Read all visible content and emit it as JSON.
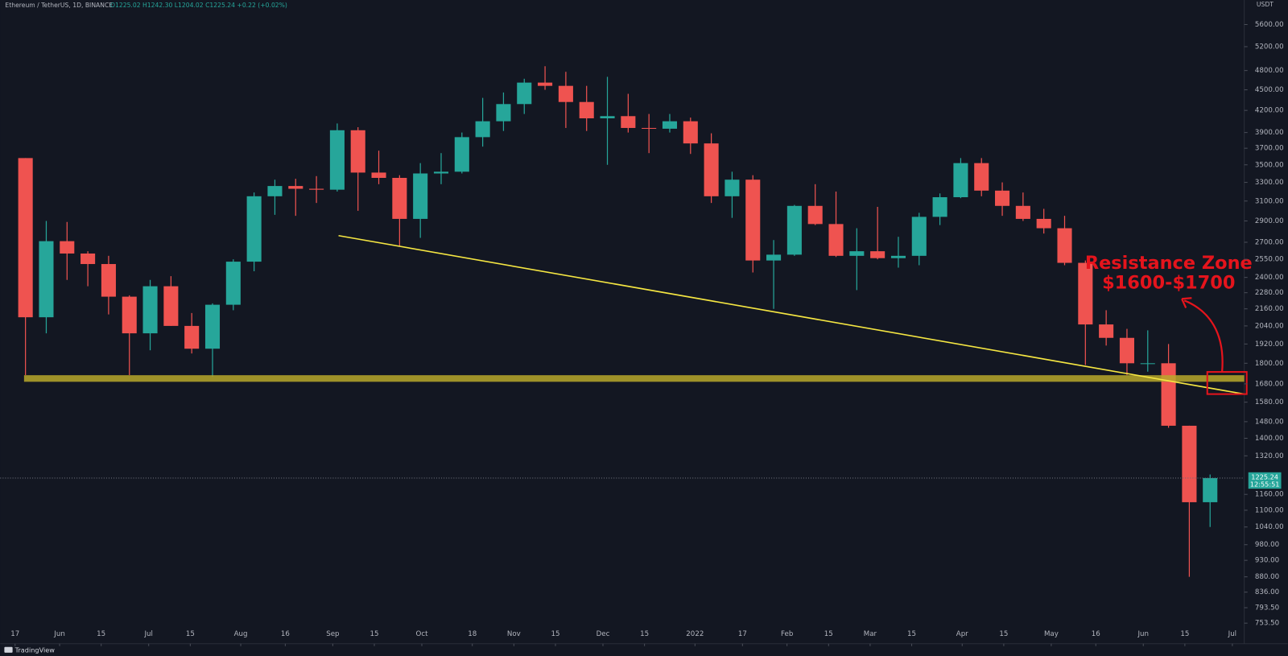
{
  "chart_data": {
    "type": "candlestick",
    "title": "Ethereum / TetherUS, 1D, BINANCE",
    "ohlc_text": "O1225.02 H1242.30 L1204.02 C1225.24 +0.22 (+0.02%)",
    "currency": "USDT",
    "brand": "TradingView",
    "annotation": [
      "Resistance Zone",
      "$1600-$1700"
    ],
    "last_price": {
      "value": 1225.24,
      "label": "1225.24"
    },
    "countdown": "12:55:51",
    "log_scale": true,
    "grid": false,
    "up_color": "#26a69a",
    "down_color": "#ef5350",
    "xlim": [
      "2021-05-12",
      "2022-07-05"
    ],
    "ylim": [
      727,
      6080
    ],
    "x": [
      "2021-05-17",
      "2021-05-24",
      "2021-05-31",
      "2021-06-07",
      "2021-06-14",
      "2021-06-21",
      "2021-06-28",
      "2021-07-05",
      "2021-07-12",
      "2021-07-19",
      "2021-07-26",
      "2021-08-02",
      "2021-08-09",
      "2021-08-16",
      "2021-08-23",
      "2021-08-30",
      "2021-09-06",
      "2021-09-13",
      "2021-09-20",
      "2021-09-27",
      "2021-10-04",
      "2021-10-11",
      "2021-10-18",
      "2021-10-25",
      "2021-11-01",
      "2021-11-08",
      "2021-11-15",
      "2021-11-22",
      "2021-11-29",
      "2021-12-06",
      "2021-12-13",
      "2021-12-20",
      "2021-12-27",
      "2022-01-03",
      "2022-01-10",
      "2022-01-17",
      "2022-01-24",
      "2022-01-31",
      "2022-02-07",
      "2022-02-14",
      "2022-02-21",
      "2022-02-28",
      "2022-03-07",
      "2022-03-14",
      "2022-03-21",
      "2022-03-28",
      "2022-04-04",
      "2022-04-11",
      "2022-04-18",
      "2022-04-25",
      "2022-05-02",
      "2022-05-09",
      "2022-05-16",
      "2022-05-23",
      "2022-05-30",
      "2022-06-06",
      "2022-06-13",
      "2022-06-20"
    ],
    "open": [
      3580,
      2100,
      2710,
      2600,
      2510,
      2250,
      1990,
      2330,
      2040,
      1890,
      2190,
      2530,
      3150,
      3260,
      3230,
      3220,
      3930,
      3410,
      3350,
      2920,
      3400,
      3420,
      3840,
      4050,
      4290,
      4610,
      4560,
      4320,
      4090,
      4120,
      3960,
      3950,
      4050,
      3760,
      3150,
      3330,
      2540,
      2590,
      3050,
      2870,
      2580,
      2620,
      2560,
      2580,
      2940,
      3140,
      3520,
      3210,
      3050,
      2920,
      2830,
      2520,
      2050,
      1960,
      1800,
      1800,
      1460,
      1130
    ],
    "high": [
      3580,
      2900,
      2890,
      2620,
      2580,
      2260,
      2380,
      2410,
      2130,
      2200,
      2550,
      3190,
      3330,
      3340,
      3370,
      4020,
      3970,
      3670,
      3380,
      3520,
      3640,
      3900,
      4380,
      4460,
      4670,
      4870,
      4780,
      4560,
      4700,
      4440,
      4150,
      4150,
      4100,
      3890,
      3420,
      3380,
      2720,
      3060,
      3280,
      3200,
      2830,
      3040,
      2750,
      2980,
      3180,
      3580,
      3580,
      3300,
      3190,
      3020,
      2950,
      2540,
      2150,
      2020,
      2010,
      1920,
      1460,
      1240
    ],
    "low": [
      1730,
      1990,
      2380,
      2330,
      2120,
      1730,
      1880,
      2040,
      1860,
      1720,
      2150,
      2450,
      2960,
      2950,
      3080,
      3200,
      3000,
      3280,
      2660,
      2740,
      3280,
      3400,
      3720,
      3920,
      4150,
      4500,
      3960,
      3920,
      3500,
      3900,
      3640,
      3900,
      3630,
      3080,
      2930,
      2440,
      2160,
      2580,
      2860,
      2570,
      2300,
      2550,
      2480,
      2500,
      2860,
      3130,
      3150,
      2950,
      2900,
      2780,
      2500,
      1790,
      1910,
      1730,
      1750,
      1450,
      880,
      1040
    ],
    "close": [
      2100,
      2710,
      2600,
      2510,
      2250,
      1990,
      2330,
      2040,
      1890,
      2190,
      2530,
      3150,
      3260,
      3230,
      3220,
      3930,
      3410,
      3350,
      2920,
      3400,
      3420,
      3840,
      4050,
      4290,
      4610,
      4560,
      4320,
      4090,
      4120,
      3960,
      3950,
      4050,
      3760,
      3150,
      3330,
      2540,
      2590,
      3050,
      2870,
      2580,
      2620,
      2560,
      2580,
      2940,
      3140,
      3520,
      3210,
      3050,
      2920,
      2830,
      2520,
      2050,
      1960,
      1800,
      1800,
      1460,
      1130,
      1225.24
    ],
    "yticks": [
      {
        "value": 5600,
        "label": "5600.00"
      },
      {
        "value": 5200,
        "label": "5200.00"
      },
      {
        "value": 4800,
        "label": "4800.00"
      },
      {
        "value": 4500,
        "label": "4500.00"
      },
      {
        "value": 4200,
        "label": "4200.00"
      },
      {
        "value": 3900,
        "label": "3900.00"
      },
      {
        "value": 3700,
        "label": "3700.00"
      },
      {
        "value": 3500,
        "label": "3500.00"
      },
      {
        "value": 3300,
        "label": "3300.00"
      },
      {
        "value": 3100,
        "label": "3100.00"
      },
      {
        "value": 2900,
        "label": "2900.00"
      },
      {
        "value": 2700,
        "label": "2700.00"
      },
      {
        "value": 2550,
        "label": "2550.00"
      },
      {
        "value": 2400,
        "label": "2400.00"
      },
      {
        "value": 2280,
        "label": "2280.00"
      },
      {
        "value": 2160,
        "label": "2160.00"
      },
      {
        "value": 2040,
        "label": "2040.00"
      },
      {
        "value": 1920,
        "label": "1920.00"
      },
      {
        "value": 1800,
        "label": "1800.00"
      },
      {
        "value": 1680,
        "label": "1680.00"
      },
      {
        "value": 1580,
        "label": "1580.00"
      },
      {
        "value": 1480,
        "label": "1480.00"
      },
      {
        "value": 1400,
        "label": "1400.00"
      },
      {
        "value": 1320,
        "label": "1320.00"
      },
      {
        "value": 1160,
        "label": "1160.00"
      },
      {
        "value": 1100,
        "label": "1100.00"
      },
      {
        "value": 1040,
        "label": "1040.00"
      },
      {
        "value": 980,
        "label": "980.00"
      },
      {
        "value": 930,
        "label": "930.00"
      },
      {
        "value": 880,
        "label": "880.00"
      },
      {
        "value": 836,
        "label": "836.00"
      },
      {
        "value": 793.5,
        "label": "793.50"
      },
      {
        "value": 753.5,
        "label": "753.50"
      }
    ],
    "xticks": [
      {
        "value": "2021-05-17",
        "label": "17"
      },
      {
        "value": "2021-06-01",
        "label": "Jun"
      },
      {
        "value": "2021-06-15",
        "label": "15"
      },
      {
        "value": "2021-07-01",
        "label": "Jul"
      },
      {
        "value": "2021-07-15",
        "label": "15"
      },
      {
        "value": "2021-08-01",
        "label": "Aug"
      },
      {
        "value": "2021-08-16",
        "label": "16"
      },
      {
        "value": "2021-09-01",
        "label": "Sep"
      },
      {
        "value": "2021-09-15",
        "label": "15"
      },
      {
        "value": "2021-10-01",
        "label": "Oct"
      },
      {
        "value": "2021-10-18",
        "label": "18"
      },
      {
        "value": "2021-11-01",
        "label": "Nov"
      },
      {
        "value": "2021-11-15",
        "label": "15"
      },
      {
        "value": "2021-12-01",
        "label": "Dec"
      },
      {
        "value": "2021-12-15",
        "label": "15"
      },
      {
        "value": "2022-01-01",
        "label": "2022"
      },
      {
        "value": "2022-01-17",
        "label": "17"
      },
      {
        "value": "2022-02-01",
        "label": "Feb"
      },
      {
        "value": "2022-02-15",
        "label": "15"
      },
      {
        "value": "2022-03-01",
        "label": "Mar"
      },
      {
        "value": "2022-03-15",
        "label": "15"
      },
      {
        "value": "2022-04-01",
        "label": "Apr"
      },
      {
        "value": "2022-04-15",
        "label": "15"
      },
      {
        "value": "2022-05-01",
        "label": "May"
      },
      {
        "value": "2022-05-16",
        "label": "16"
      },
      {
        "value": "2022-06-01",
        "label": "Jun"
      },
      {
        "value": "2022-06-15",
        "label": "15"
      },
      {
        "value": "2022-07-01",
        "label": "Jul"
      }
    ]
  }
}
